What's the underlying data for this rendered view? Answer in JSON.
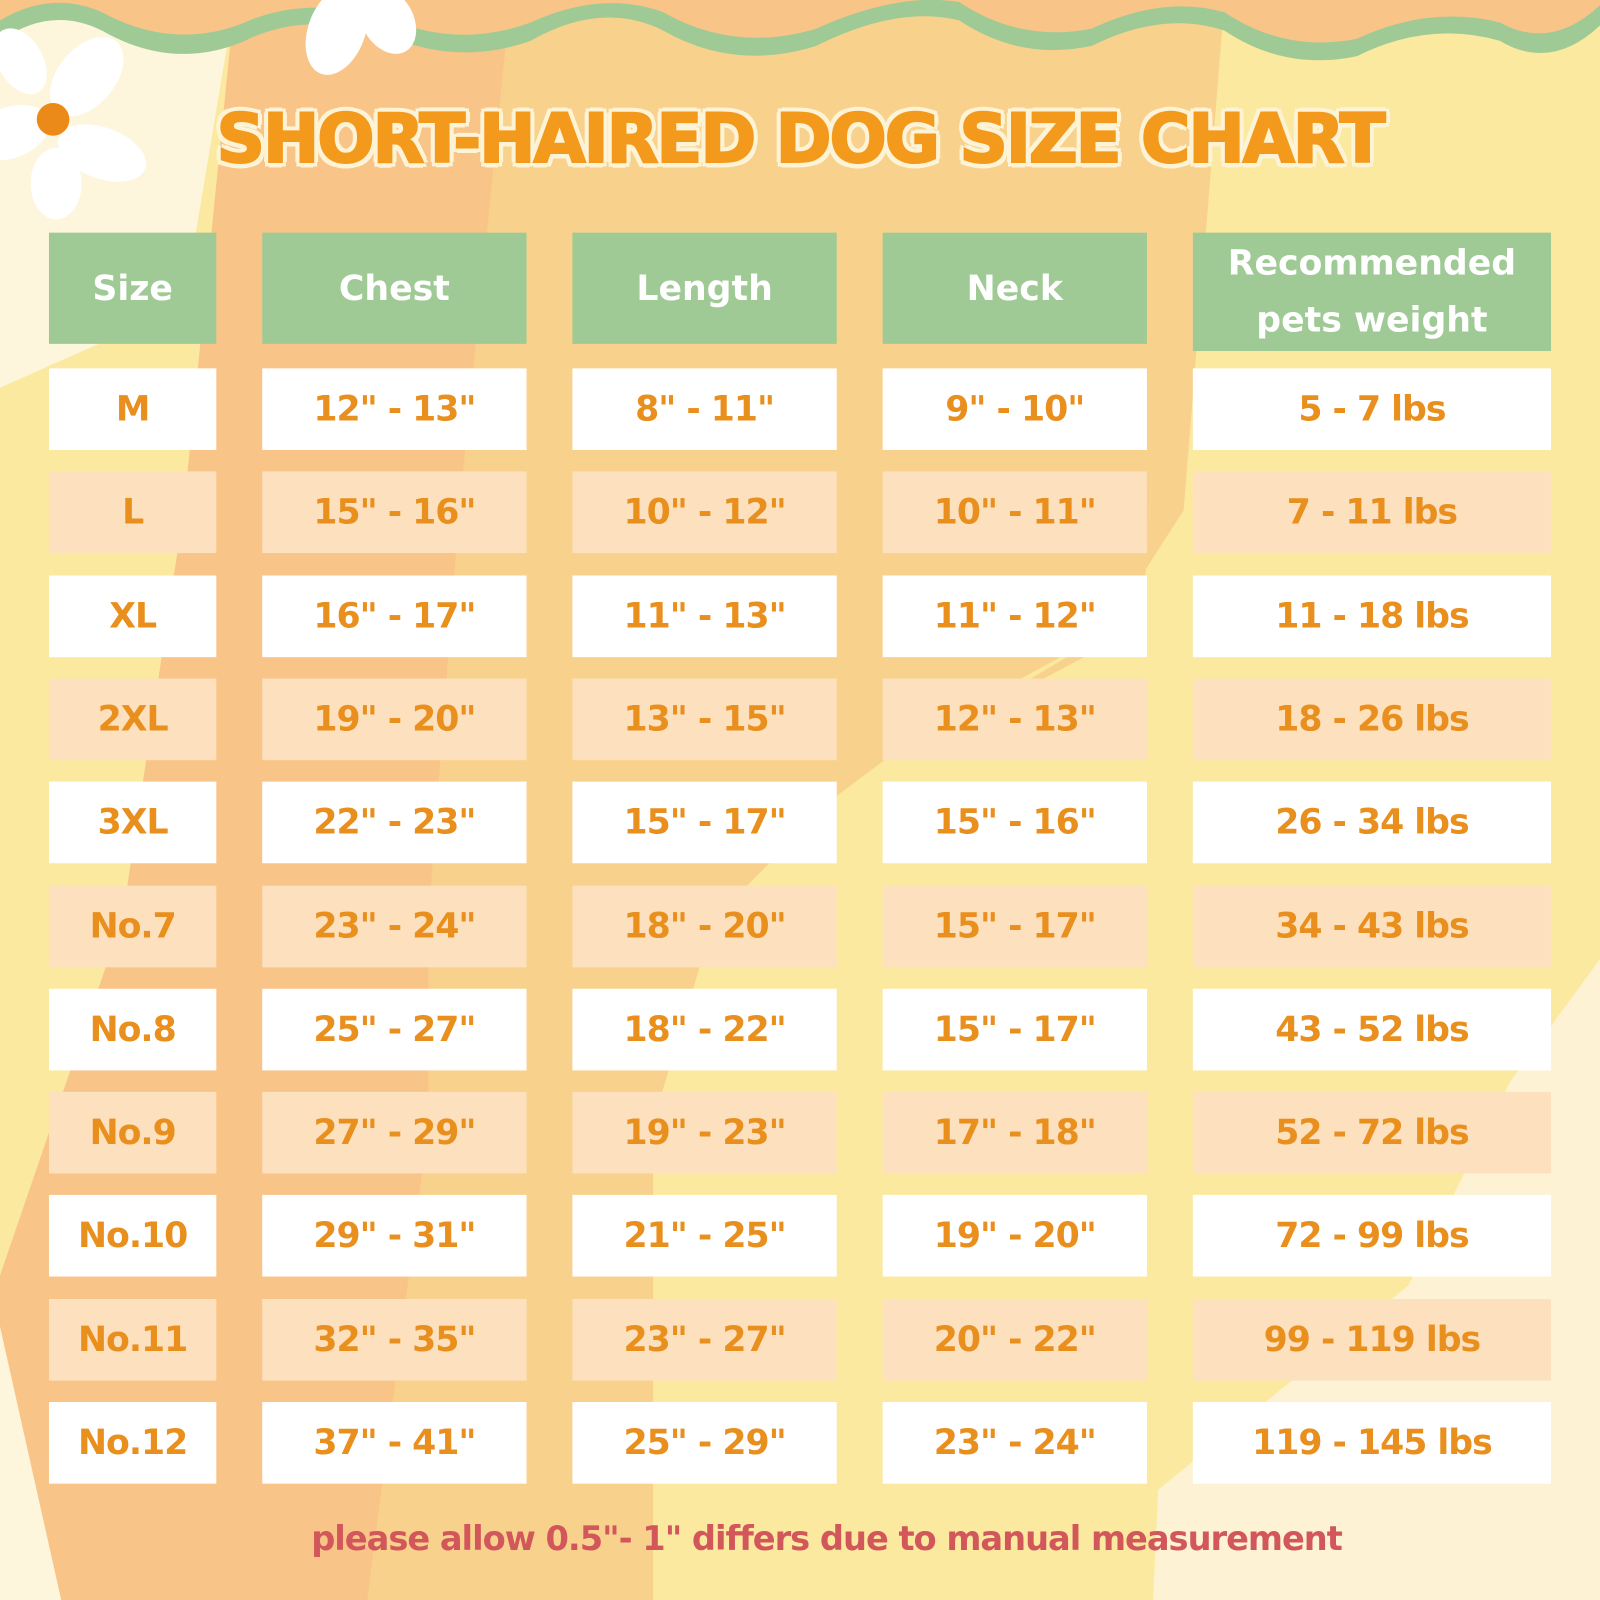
{
  "title": "SHORT-HAIRED DOG SIZE CHART",
  "colors": {
    "header_bg": "#9fca95",
    "cell_text": "#e98f1e",
    "row_alt": "#fde0bd",
    "note": "#d1575a",
    "title": "#f39a1c"
  },
  "headers": [
    "Size",
    "Chest",
    "Length",
    "Neck",
    "Recommended pets weight"
  ],
  "rows": [
    [
      "M",
      "12\" - 13\"",
      "8\" - 11\"",
      "9\" - 10\"",
      "5 - 7 lbs"
    ],
    [
      "L",
      "15\" - 16\"",
      "10\" - 12\"",
      "10\" - 11\"",
      "7 - 11 lbs"
    ],
    [
      "XL",
      "16\" - 17\"",
      "11\" - 13\"",
      "11\" - 12\"",
      "11 - 18 lbs"
    ],
    [
      "2XL",
      "19\" - 20\"",
      "13\" - 15\"",
      "12\" - 13\"",
      "18 - 26 lbs"
    ],
    [
      "3XL",
      "22\" - 23\"",
      "15\" - 17\"",
      "15\" - 16\"",
      "26 - 34 lbs"
    ],
    [
      "No.7",
      "23\" - 24\"",
      "18\" - 20\"",
      "15\" - 17\"",
      "34 - 43 lbs"
    ],
    [
      "No.8",
      "25\" - 27\"",
      "18\" - 22\"",
      "15\" - 17\"",
      "43 - 52 lbs"
    ],
    [
      "No.9",
      "27\" - 29\"",
      "19\" - 23\"",
      "17\" - 18\"",
      "52 - 72 lbs"
    ],
    [
      "No.10",
      "29\" - 31\"",
      "21\" - 25\"",
      "19\" - 20\"",
      "72 - 99 lbs"
    ],
    [
      "No.11",
      "32\" - 35\"",
      "23\" - 27\"",
      "20\" - 22\"",
      "99 - 119 lbs"
    ],
    [
      "No.12",
      "37\" - 41\"",
      "25\" - 29\"",
      "23\" - 24\"",
      "119 - 145 lbs"
    ]
  ],
  "note": "please allow 0.5\"- 1\" differs due to manual measurement"
}
